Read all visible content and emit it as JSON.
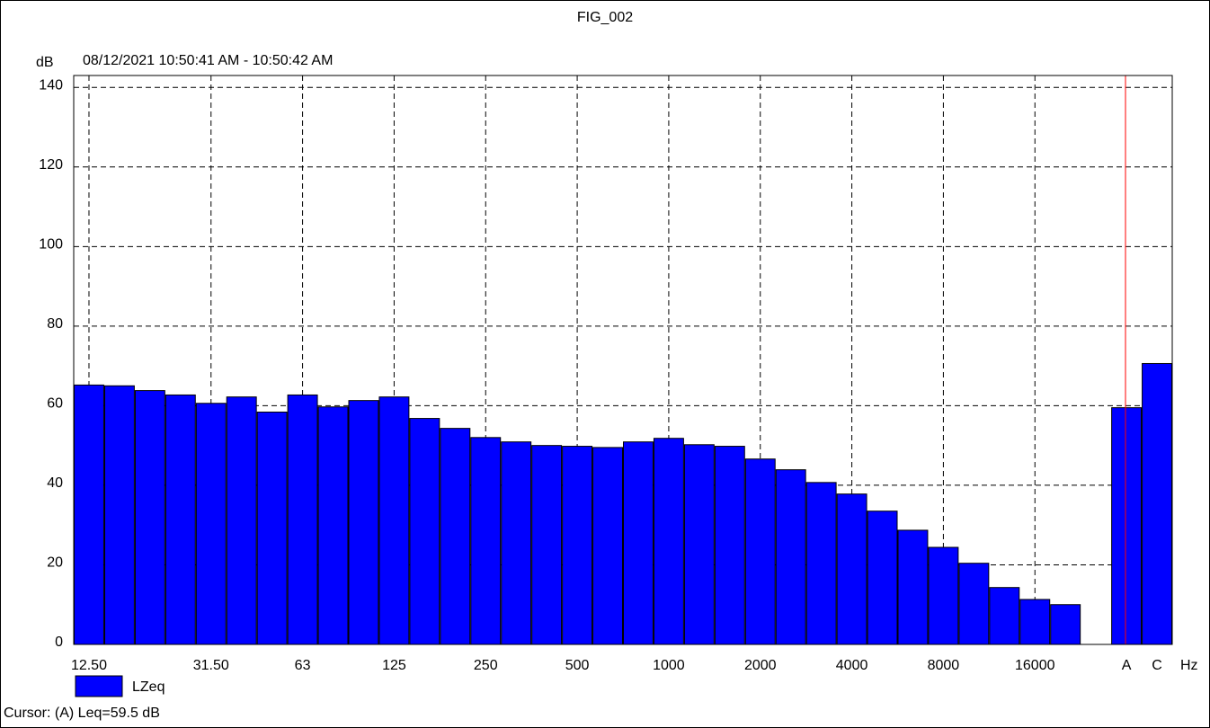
{
  "chart_data": {
    "type": "bar",
    "title": "FIG_002",
    "subtitle": "08/12/2021 10:50:41 AM - 10:50:42 AM",
    "y_label": "dB",
    "x_label": "Hz",
    "categories": [
      "12.50",
      null,
      null,
      null,
      "31.50",
      null,
      null,
      "63",
      null,
      null,
      "125",
      null,
      null,
      "250",
      null,
      null,
      "500",
      null,
      null,
      "1000",
      null,
      null,
      "2000",
      null,
      null,
      "4000",
      null,
      null,
      "8000",
      null,
      null,
      "16000",
      null,
      null,
      "A",
      "C"
    ],
    "series": [
      {
        "name": "LZeq",
        "color": "#0000ff",
        "values": [
          65.2,
          65.0,
          63.8,
          62.7,
          60.6,
          62.2,
          58.4,
          62.7,
          59.7,
          61.3,
          62.2,
          56.8,
          54.3,
          52.0,
          50.9,
          50.0,
          49.8,
          49.5,
          50.9,
          51.8,
          50.2,
          49.8,
          46.6,
          43.9,
          40.7,
          37.8,
          33.5,
          28.7,
          24.4,
          20.4,
          14.3,
          11.3,
          10.0,
          null,
          59.5,
          70.6
        ]
      }
    ],
    "ylim": [
      0,
      143
    ],
    "yticks": [
      0,
      20,
      40,
      60,
      80,
      100,
      120,
      140
    ],
    "grid": true,
    "footer": "Cursor: (A)  Leq=59.5 dB"
  }
}
